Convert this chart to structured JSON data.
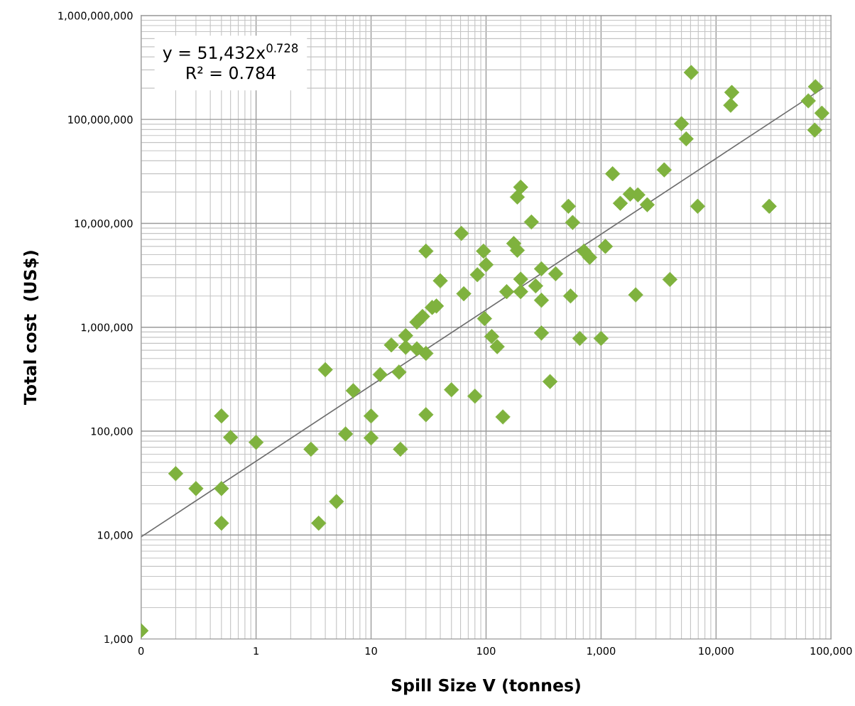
{
  "chart_data": {
    "type": "scatter",
    "xlabel": "Spill Size V (tonnes)",
    "ylabel": "Total cost  (US$)",
    "log": "xy",
    "grid": true,
    "xlim": [
      0.1,
      100000
    ],
    "ylim": [
      1000,
      1000000000
    ],
    "xticks": [
      {
        "value": 0.1,
        "label": "0"
      },
      1,
      10,
      100,
      {
        "value": 1000,
        "label": "1,000"
      },
      {
        "value": 10000,
        "label": "10,000"
      },
      {
        "value": 100000,
        "label": "100,000"
      }
    ],
    "yticks": [
      {
        "value": 1000,
        "label": "1,000"
      },
      {
        "value": 10000,
        "label": "10,000"
      },
      {
        "value": 100000,
        "label": "100,000"
      },
      {
        "value": 1000000,
        "label": "1,000,000"
      },
      {
        "value": 10000000,
        "label": "10,000,000"
      },
      {
        "value": 100000000,
        "label": "100,000,000"
      },
      {
        "value": 1000000000,
        "label": "1,000,000,000"
      }
    ],
    "annotations": [
      "y = 51,432x$^{0.728}$",
      "R² = 0.784"
    ],
    "series": [
      {
        "color": "#7fb23e",
        "marker": "diamond",
        "x": [
          0.1,
          0.2,
          0.3,
          0.5,
          0.5,
          0.5,
          0.6,
          1,
          3,
          3.5,
          5,
          4,
          7,
          6,
          10,
          10,
          18,
          12,
          17.5,
          20,
          15,
          20,
          25,
          30,
          50,
          80,
          30,
          25,
          28,
          34,
          37,
          30,
          61,
          95,
          100,
          84,
          40,
          64,
          97,
          112,
          125,
          140,
          151,
          200,
          200,
          174,
          187,
          200,
          187,
          248,
          270,
          303,
          303,
          303,
          360,
          403,
          520,
          543,
          566,
          653,
          711,
          796,
          1000,
          1090,
          1260,
          1470,
          1790,
          2000,
          2090,
          2520,
          3540,
          3970,
          5000,
          5500,
          6080,
          6920,
          13400,
          13700,
          29000,
          63400,
          72100,
          73100,
          83200
        ],
        "values": [
          1200,
          39000,
          28000,
          28000,
          13000,
          140000,
          87000,
          78000,
          67000,
          13000,
          21000,
          390000,
          245000,
          94000,
          140000,
          86000,
          67000,
          350000,
          370000,
          830000,
          675000,
          640000,
          1120000,
          560000,
          250000,
          217000,
          144000,
          620000,
          1270000,
          1550000,
          1600000,
          5400000,
          8000000,
          5400000,
          4000000,
          3200000,
          2800000,
          2100000,
          1210000,
          815000,
          650000,
          137000,
          2200000,
          2200000,
          2900000,
          6400000,
          5500000,
          22300000,
          17900000,
          10300000,
          2500000,
          3650000,
          1820000,
          880000,
          300000,
          3270000,
          14600000,
          2000000,
          10200000,
          780000,
          5400000,
          4700000,
          780000,
          6000000,
          30000000,
          15600000,
          19100000,
          2050000,
          18800000,
          15100000,
          32700000,
          2880000,
          91000000,
          65000000,
          283000000,
          14600000,
          137000000,
          182000000,
          14600000,
          151000000,
          79000000,
          207000000,
          115000000
        ]
      },
      {
        "type": "line",
        "marker": "none",
        "color": "#6e6e6e",
        "x": [
          0.1,
          85000
        ],
        "values": [
          9600,
          200000000
        ]
      }
    ]
  }
}
